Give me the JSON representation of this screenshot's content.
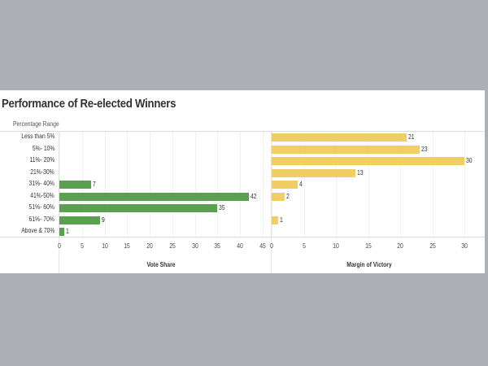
{
  "title": "Performance of Re-elected Winners",
  "row_header": "Percentage Range",
  "colors": {
    "vote_share": "#59a14f",
    "margin_of_victory": "#f1ce63",
    "background": "#aeb0b5"
  },
  "categories": [
    "Less than 5%",
    "5%- 10%",
    "11%- 20%",
    "21%-30%",
    "31%- 40%",
    "41%-50%",
    "51%- 60%",
    "61%- 70%",
    "Above & 70%"
  ],
  "left_axis": {
    "label": "Vote Share",
    "ticks": [
      "0",
      "5",
      "10",
      "15",
      "20",
      "25",
      "30",
      "35",
      "40",
      "45"
    ]
  },
  "right_axis": {
    "label": "Margin of Victory",
    "ticks": [
      "0",
      "5",
      "10",
      "15",
      "20",
      "25",
      "30"
    ]
  },
  "chart_data": [
    {
      "type": "bar",
      "orientation": "horizontal",
      "title": "Performance of Re-elected Winners",
      "xlabel": "Vote Share",
      "ylabel": "Percentage Range",
      "categories": [
        "Less than 5%",
        "5%- 10%",
        "11%- 20%",
        "21%-30%",
        "31%- 40%",
        "41%-50%",
        "51%- 60%",
        "61%- 70%",
        "Above & 70%"
      ],
      "values": [
        null,
        null,
        null,
        null,
        7,
        42,
        35,
        9,
        1
      ],
      "labels": [
        "",
        "",
        "",
        "",
        "7",
        "42",
        "35",
        "9",
        "1"
      ],
      "xlim": [
        0,
        45
      ],
      "color": "#59a14f",
      "grid": true
    },
    {
      "type": "bar",
      "orientation": "horizontal",
      "title": "Performance of Re-elected Winners",
      "xlabel": "Margin of Victory",
      "ylabel": "Percentage Range",
      "categories": [
        "Less than 5%",
        "5%- 10%",
        "11%- 20%",
        "21%-30%",
        "31%- 40%",
        "41%-50%",
        "51%- 60%",
        "61%- 70%",
        "Above & 70%"
      ],
      "values": [
        21,
        23,
        30,
        13,
        4,
        2,
        null,
        1,
        null
      ],
      "labels": [
        "21",
        "23",
        "30",
        "13",
        "4",
        "2",
        "",
        "1",
        ""
      ],
      "xlim": [
        0,
        32
      ],
      "color": "#f1ce63",
      "grid": true
    }
  ]
}
